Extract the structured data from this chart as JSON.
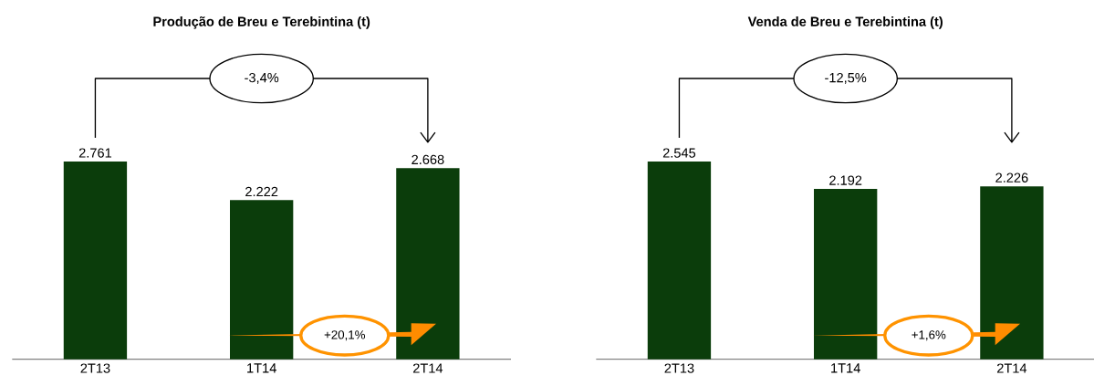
{
  "chart_data": [
    {
      "type": "bar",
      "title": "Produção de Breu e Terebintina (t)",
      "categories": [
        "2T13",
        "1T14",
        "2T14"
      ],
      "values": [
        2761,
        2222,
        2668
      ],
      "value_labels": [
        "2.761",
        "2.222",
        "2.668"
      ],
      "color": "#0b3d0b",
      "annotations": [
        "-3,4%",
        "+20,1%"
      ]
    },
    {
      "type": "bar",
      "title": "Venda de Breu e Terebintina (t)",
      "categories": [
        "2T13",
        "1T14",
        "2T14"
      ],
      "values": [
        2545,
        2192,
        2226
      ],
      "value_labels": [
        "2.545",
        "2.192",
        "2.226"
      ],
      "color": "#0b3d0b",
      "annotations": [
        "-12,5%",
        "+1,6%"
      ]
    }
  ]
}
